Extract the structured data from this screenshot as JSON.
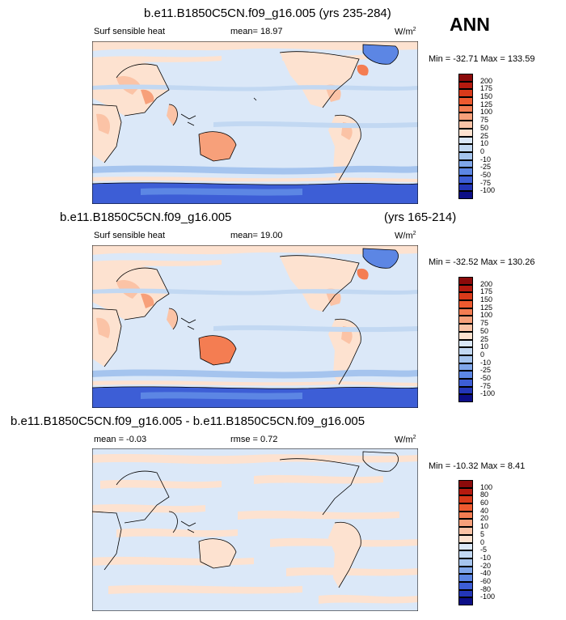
{
  "season_label": "ANN",
  "panels": [
    {
      "title": "b.e11.B1850C5CN.f09_g16.005 (yrs 235-284)",
      "title_right": "",
      "variable": "Surf sensible heat",
      "stat1": "mean=  18.97",
      "stat2": "",
      "units": "W/m",
      "units_sup": "2",
      "minmax": "Min = -32.71 Max = 133.59",
      "colorbar_labels": [
        "200",
        "175",
        "150",
        "125",
        "100",
        "75",
        "50",
        "25",
        "10",
        "0",
        "-10",
        "-25",
        "-50",
        "-75",
        "-100"
      ],
      "colors": [
        "#8b0a0a",
        "#b51a0f",
        "#d93a1a",
        "#ee5a2f",
        "#f47d52",
        "#f7a07a",
        "#fbc3a6",
        "#fde2d0",
        "#dbe8f8",
        "#c2d8f2",
        "#a5c4ee",
        "#7fa6ea",
        "#5c86e4",
        "#3d5ed6",
        "#2336b8",
        "#0c0e87"
      ]
    },
    {
      "title": "b.e11.B1850C5CN.f09_g16.005",
      "title_right": "(yrs 165-214)",
      "variable": "Surf sensible heat",
      "stat1": "mean=  19.00",
      "stat2": "",
      "units": "W/m",
      "units_sup": "2",
      "minmax": "Min = -32.52 Max = 130.26",
      "colorbar_labels": [
        "200",
        "175",
        "150",
        "125",
        "100",
        "75",
        "50",
        "25",
        "10",
        "0",
        "-10",
        "-25",
        "-50",
        "-75",
        "-100"
      ],
      "colors": [
        "#8b0a0a",
        "#b51a0f",
        "#d93a1a",
        "#ee5a2f",
        "#f47d52",
        "#f7a07a",
        "#fbc3a6",
        "#fde2d0",
        "#dbe8f8",
        "#c2d8f2",
        "#a5c4ee",
        "#7fa6ea",
        "#5c86e4",
        "#3d5ed6",
        "#2336b8",
        "#0c0e87"
      ]
    },
    {
      "title": "b.e11.B1850C5CN.f09_g16.005 - b.e11.B1850C5CN.f09_g16.005",
      "title_right": "",
      "variable": "",
      "stat1": "mean =  -0.03",
      "stat2": "rmse =   0.72",
      "units": "W/m",
      "units_sup": "2",
      "minmax": "Min = -10.32 Max =   8.41",
      "colorbar_labels": [
        "100",
        "80",
        "60",
        "40",
        "20",
        "10",
        "5",
        "0",
        "-5",
        "-10",
        "-20",
        "-40",
        "-60",
        "-80",
        "-100"
      ],
      "colors": [
        "#8b0a0a",
        "#b51a0f",
        "#d93a1a",
        "#ee5a2f",
        "#f47d52",
        "#f7a07a",
        "#fbc3a6",
        "#fde2d0",
        "#dbe8f8",
        "#c2d8f2",
        "#a5c4ee",
        "#7fa6ea",
        "#5c86e4",
        "#3d5ed6",
        "#2336b8",
        "#0c0e87"
      ]
    }
  ],
  "chart_data": [
    {
      "type": "heatmap",
      "title": "b.e11.B1850C5CN.f09_g16.005 (yrs 235-284)",
      "variable": "Surf sensible heat",
      "units": "W/m2",
      "mean": 18.97,
      "min": -32.71,
      "max": 133.59,
      "contour_levels": [
        -100,
        -75,
        -50,
        -25,
        -10,
        0,
        10,
        25,
        50,
        75,
        100,
        125,
        150,
        175,
        200
      ],
      "projection": "cylindrical equidistant, centered on the Pacific"
    },
    {
      "type": "heatmap",
      "title": "b.e11.B1850C5CN.f09_g16.005 (yrs 165-214)",
      "variable": "Surf sensible heat",
      "units": "W/m2",
      "mean": 19.0,
      "min": -32.52,
      "max": 130.26,
      "contour_levels": [
        -100,
        -75,
        -50,
        -25,
        -10,
        0,
        10,
        25,
        50,
        75,
        100,
        125,
        150,
        175,
        200
      ],
      "projection": "cylindrical equidistant, centered on the Pacific"
    },
    {
      "type": "heatmap",
      "title": "b.e11.B1850C5CN.f09_g16.005 - b.e11.B1850C5CN.f09_g16.005",
      "units": "W/m2",
      "mean": -0.03,
      "rmse": 0.72,
      "min": -10.32,
      "max": 8.41,
      "contour_levels": [
        -100,
        -80,
        -60,
        -40,
        -20,
        -10,
        -5,
        0,
        5,
        10,
        20,
        40,
        60,
        80,
        100
      ],
      "projection": "cylindrical equidistant, centered on the Pacific"
    }
  ]
}
